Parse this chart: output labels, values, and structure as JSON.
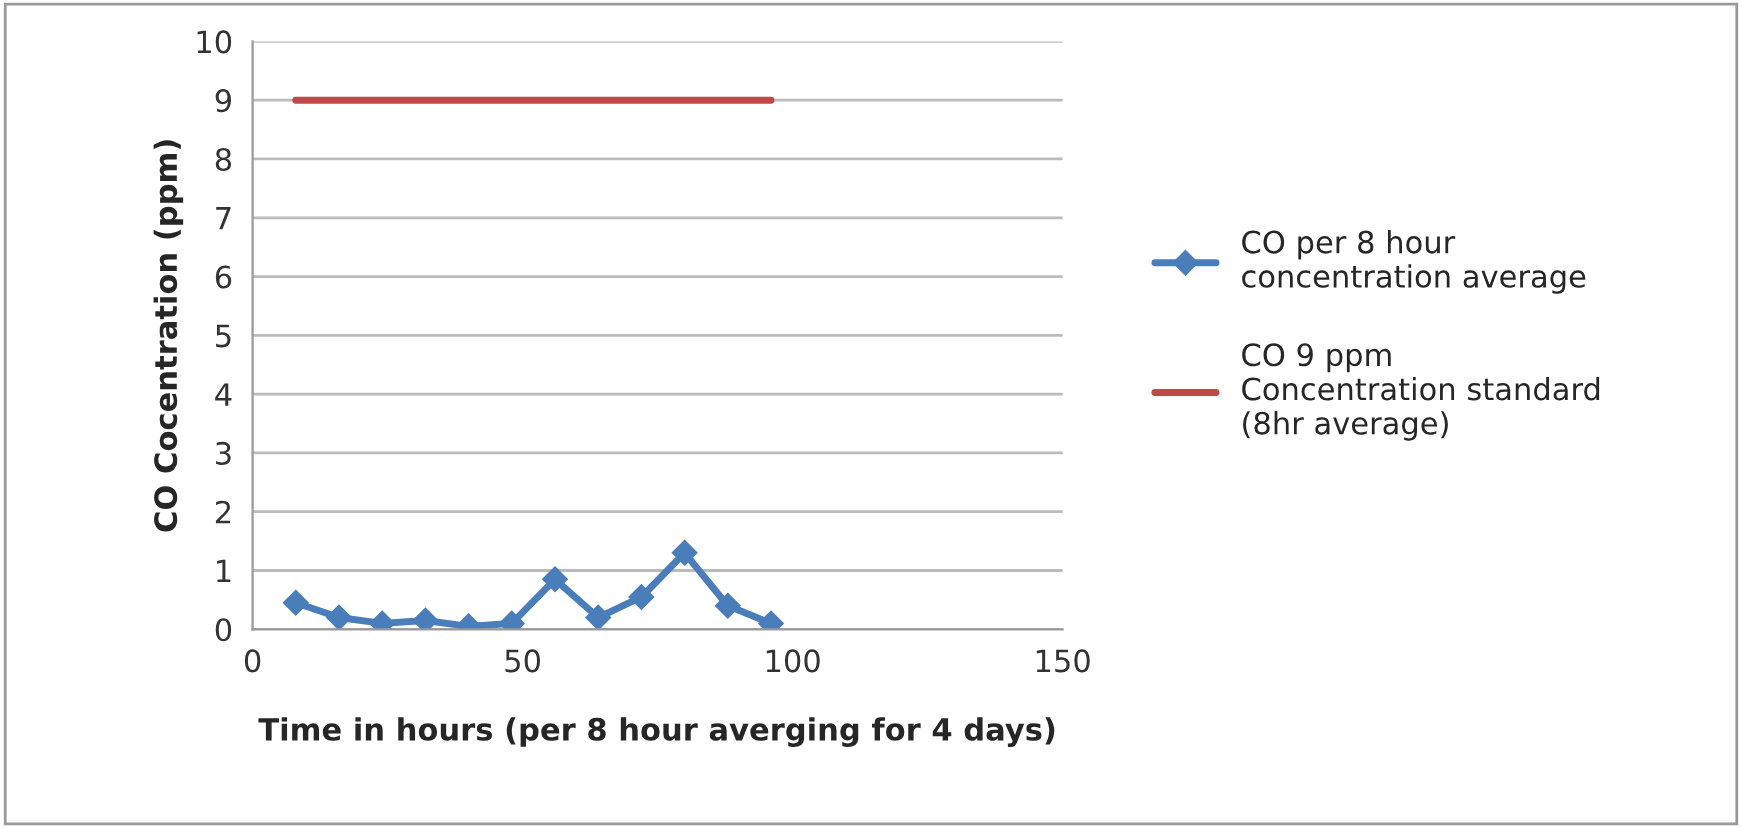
{
  "chart_data": {
    "type": "line",
    "xlabel": "Time in hours (per 8 hour averging for 4 days)",
    "ylabel": "CO Cocentration (ppm)",
    "series": [
      {
        "name": "CO per 8 hour\nconcentration average",
        "color": "#4a7ebb",
        "marker": "diamond",
        "x": [
          8,
          16,
          24,
          32,
          40,
          48,
          56,
          64,
          72,
          80,
          88,
          96
        ],
        "values": [
          0.45,
          0.2,
          0.1,
          0.15,
          0.05,
          0.1,
          0.85,
          0.2,
          0.55,
          1.3,
          0.4,
          0.1
        ]
      },
      {
        "name": "CO 9 ppm\nConcentration standard\n(8hr average)",
        "color": "#be4b48",
        "marker": "none",
        "x": [
          8,
          96
        ],
        "values": [
          9,
          9
        ]
      }
    ],
    "xlim": [
      0,
      150
    ],
    "xticks": [
      0,
      50,
      100,
      150
    ],
    "ylim": [
      0,
      10
    ],
    "yticks": [
      0,
      1,
      2,
      3,
      4,
      5,
      6,
      7,
      8,
      9,
      10
    ],
    "grid": "y",
    "legend": "right"
  }
}
